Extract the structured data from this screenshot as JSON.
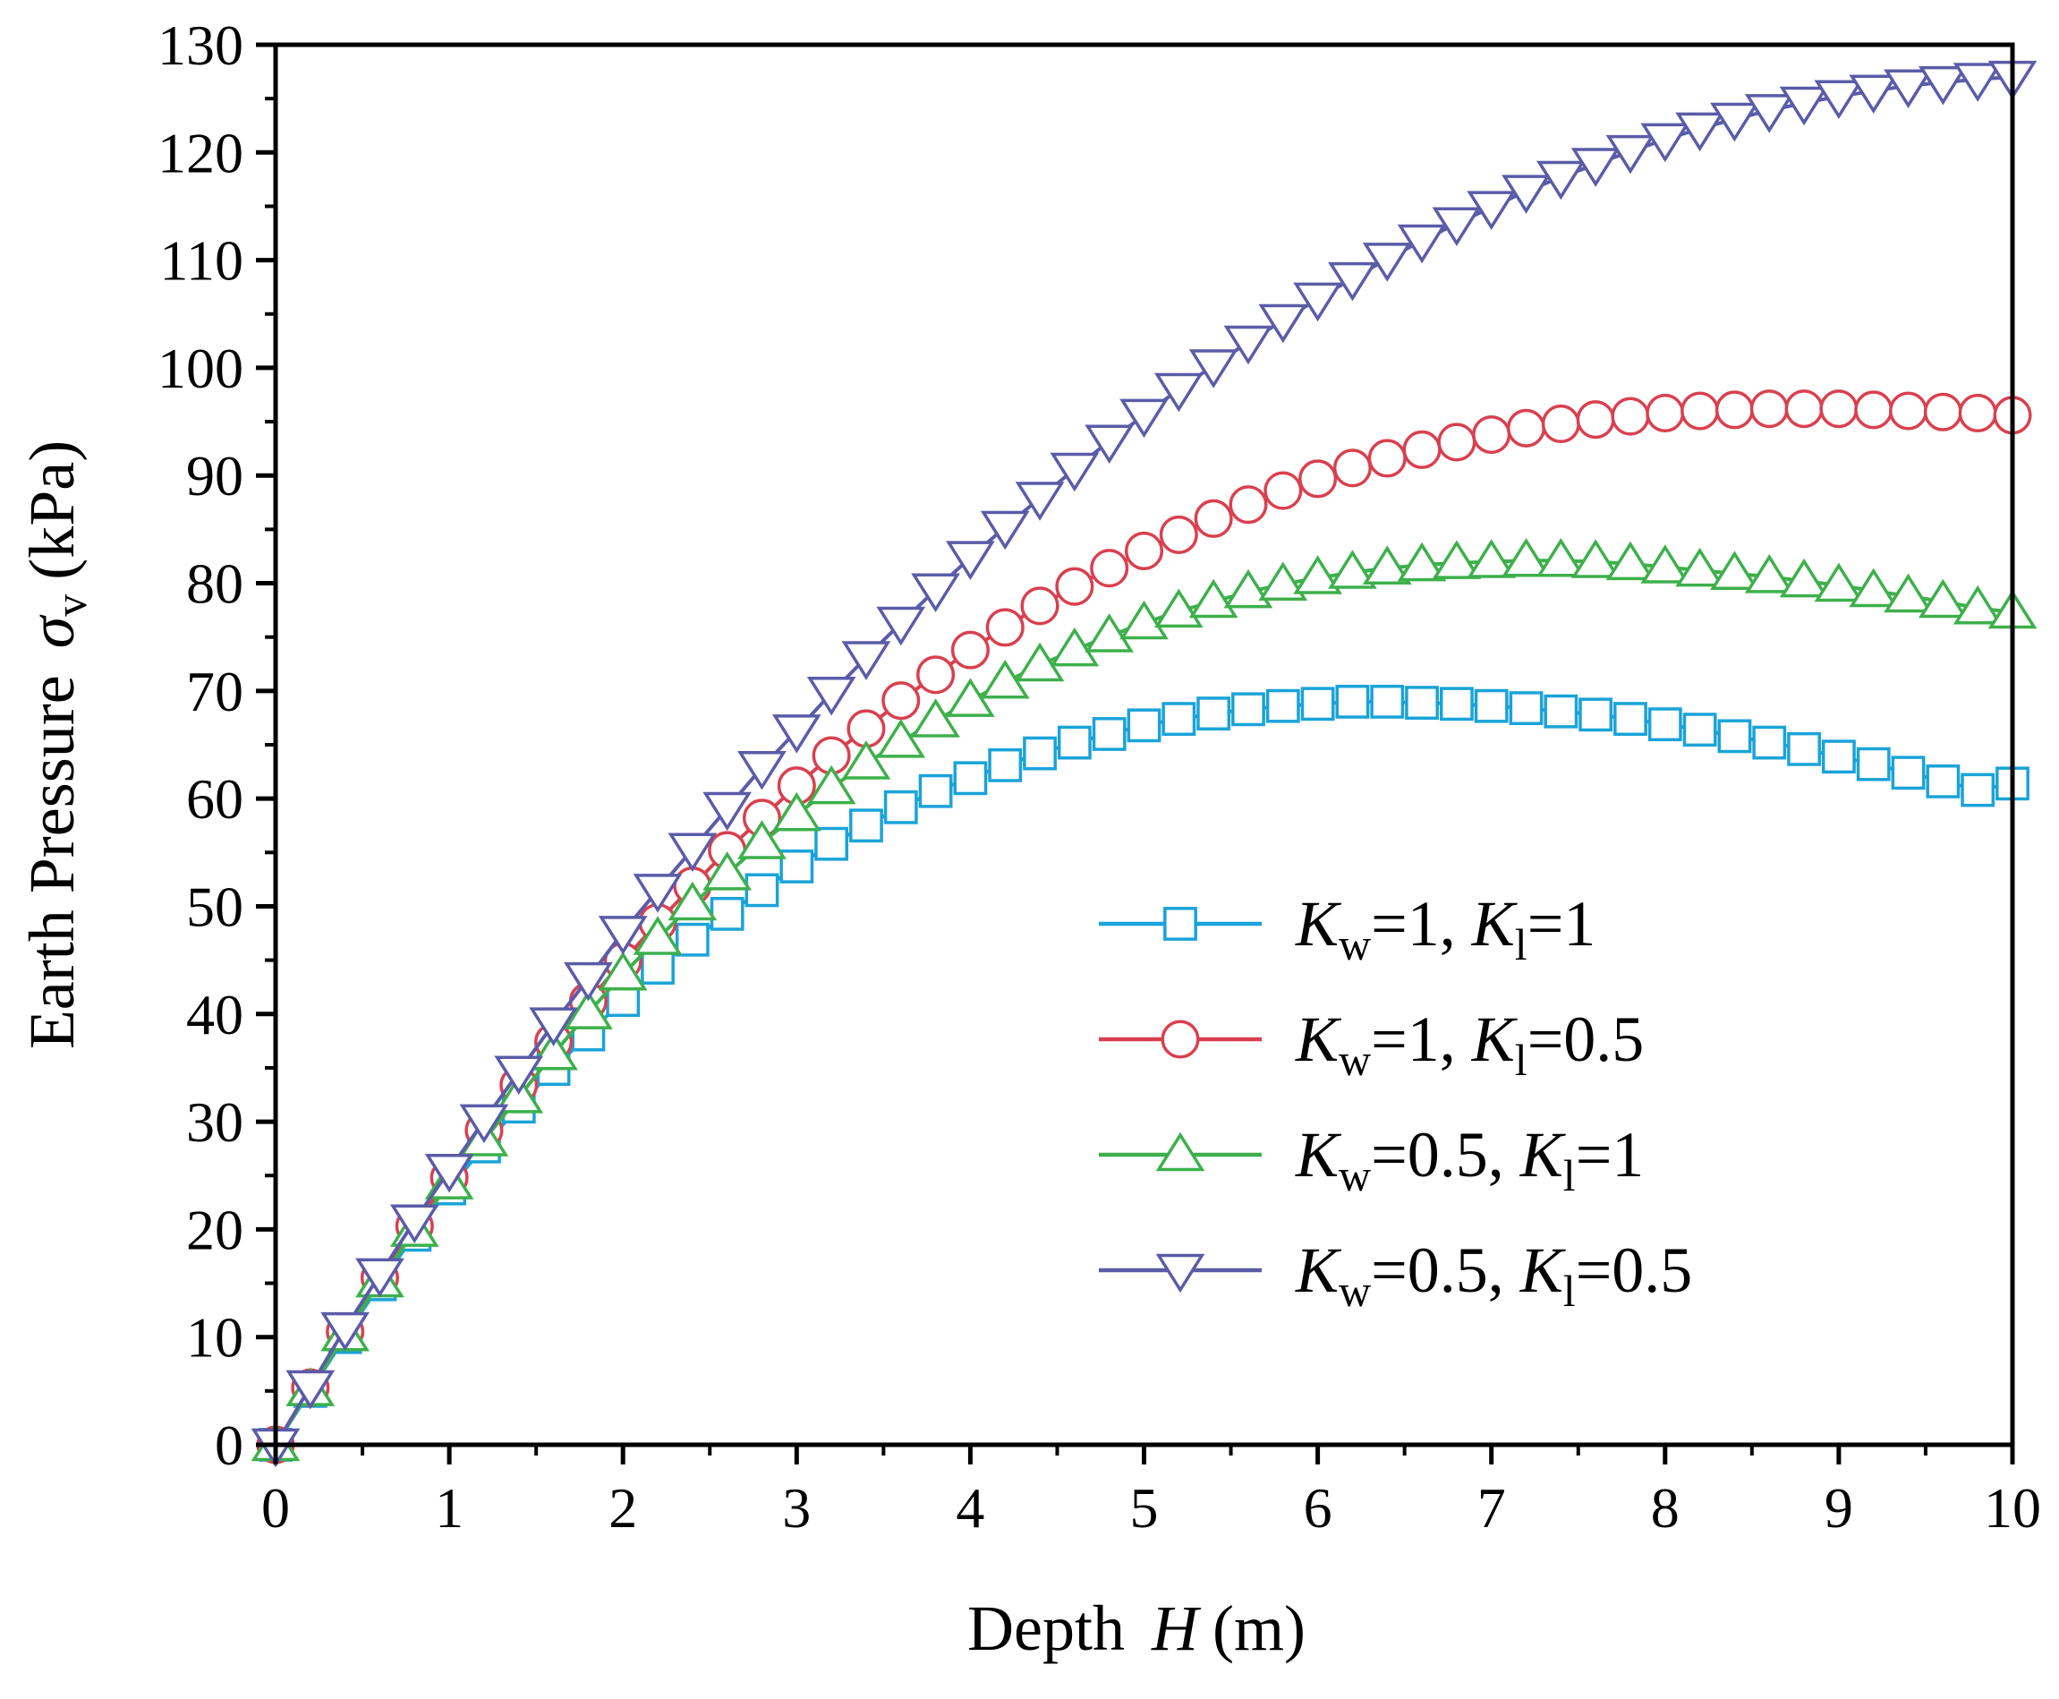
{
  "chart_data": {
    "type": "line",
    "title": "",
    "xlabel": {
      "prefix": "Depth",
      "symbol": "H",
      "unit": "(m)"
    },
    "ylabel": {
      "prefix": "Earth Pressure",
      "symbol": "σ",
      "subscript": "v",
      "unit": "(kPa)"
    },
    "xlim": [
      0,
      10
    ],
    "ylim": [
      0,
      130
    ],
    "xticks": [
      "0",
      "1",
      "2",
      "3",
      "4",
      "5",
      "6",
      "7",
      "8",
      "9",
      "10"
    ],
    "yticks": [
      "0",
      "10",
      "20",
      "30",
      "40",
      "50",
      "60",
      "70",
      "80",
      "90",
      "100",
      "110",
      "120",
      "130"
    ],
    "x": [
      0,
      0.2,
      0.4,
      0.6,
      0.8,
      1.0,
      1.2,
      1.4,
      1.6,
      1.8,
      2.0,
      2.2,
      2.4,
      2.6,
      2.8,
      3.0,
      3.2,
      3.4,
      3.6,
      3.8,
      4.0,
      4.2,
      4.4,
      4.6,
      4.8,
      5.0,
      5.2,
      5.4,
      5.6,
      5.8,
      6.0,
      6.2,
      6.4,
      6.6,
      6.8,
      7.0,
      7.2,
      7.4,
      7.6,
      7.8,
      8.0,
      8.2,
      8.4,
      8.6,
      8.8,
      9.0,
      9.2,
      9.4,
      9.6,
      9.8,
      10.0
    ],
    "series": [
      {
        "name": "Kw=1, Kl=1",
        "legend": {
          "k1": "K",
          "s1": "w",
          "v1": "=1, ",
          "k2": "K",
          "s2": "l",
          "v2": "=1"
        },
        "color": "#1aa3d9",
        "marker": "square",
        "values": [
          0,
          5.0,
          10.0,
          14.9,
          19.5,
          23.8,
          27.7,
          31.4,
          34.9,
          38.1,
          41.3,
          44.3,
          46.9,
          49.3,
          51.5,
          53.7,
          55.8,
          57.5,
          59.2,
          60.7,
          61.9,
          63.1,
          64.2,
          65.2,
          66.0,
          66.8,
          67.4,
          67.9,
          68.3,
          68.6,
          68.8,
          69.0,
          69.0,
          68.9,
          68.8,
          68.6,
          68.4,
          68.1,
          67.8,
          67.4,
          66.9,
          66.4,
          65.8,
          65.2,
          64.6,
          63.9,
          63.2,
          62.4,
          61.6,
          60.8,
          61.4
        ]
      },
      {
        "name": "Kw=1, Kl=0.5",
        "legend": {
          "k1": "K",
          "s1": "w",
          "v1": "=1, ",
          "k2": "K",
          "s2": "l",
          "v2": "=0.5"
        },
        "color": "#d9404f",
        "marker": "circle",
        "values": [
          0,
          5.3,
          10.5,
          15.5,
          20.3,
          24.8,
          29.2,
          33.4,
          37.4,
          41.2,
          44.9,
          48.5,
          51.9,
          55.2,
          58.2,
          61.2,
          64.0,
          66.5,
          69.1,
          71.5,
          73.8,
          75.9,
          77.9,
          79.7,
          81.4,
          83.0,
          84.5,
          86.0,
          87.3,
          88.6,
          89.7,
          90.7,
          91.6,
          92.4,
          93.1,
          93.8,
          94.4,
          94.8,
          95.2,
          95.5,
          95.8,
          96.0,
          96.1,
          96.2,
          96.2,
          96.2,
          96.1,
          96.0,
          95.9,
          95.8,
          95.6
        ]
      },
      {
        "name": "Kw=0.5, Kl=1",
        "legend": {
          "k1": "K",
          "s1": "w",
          "v1": "=0.5, ",
          "k2": "K",
          "s2": "l",
          "v2": "=1"
        },
        "color": "#3db04b",
        "marker": "triangle-up",
        "values": [
          0,
          5.1,
          10.2,
          15.2,
          19.9,
          24.3,
          28.3,
          32.3,
          36.3,
          40.1,
          43.7,
          47.0,
          50.2,
          53.0,
          55.9,
          58.5,
          61.0,
          63.3,
          65.3,
          67.2,
          69.1,
          70.8,
          72.4,
          73.8,
          75.1,
          76.3,
          77.4,
          78.3,
          79.2,
          79.9,
          80.5,
          81.0,
          81.4,
          81.7,
          81.9,
          82.0,
          82.1,
          82.1,
          82.0,
          81.8,
          81.5,
          81.2,
          80.9,
          80.6,
          80.2,
          79.8,
          79.3,
          78.8,
          78.3,
          77.7,
          77.3
        ]
      },
      {
        "name": "Kw=0.5, Kl=0.5",
        "legend": {
          "k1": "K",
          "s1": "w",
          "v1": "=0.5, ",
          "k2": "K",
          "s2": "l",
          "v2": "=0.5"
        },
        "color": "#5a5ca8",
        "marker": "triangle-down",
        "values": [
          0,
          5.4,
          10.8,
          15.8,
          20.8,
          25.5,
          30.1,
          34.6,
          39.1,
          43.3,
          47.6,
          51.5,
          55.3,
          59.1,
          62.9,
          66.3,
          69.8,
          73.1,
          76.3,
          79.4,
          82.4,
          85.2,
          87.9,
          90.6,
          93.2,
          95.6,
          98.0,
          100.2,
          102.4,
          104.4,
          106.4,
          108.3,
          110.1,
          111.8,
          113.4,
          114.9,
          116.4,
          117.7,
          118.9,
          120.1,
          121.2,
          122.2,
          123.1,
          123.9,
          124.6,
          125.2,
          125.7,
          126.2,
          126.5,
          126.8,
          127.0
        ]
      }
    ]
  }
}
